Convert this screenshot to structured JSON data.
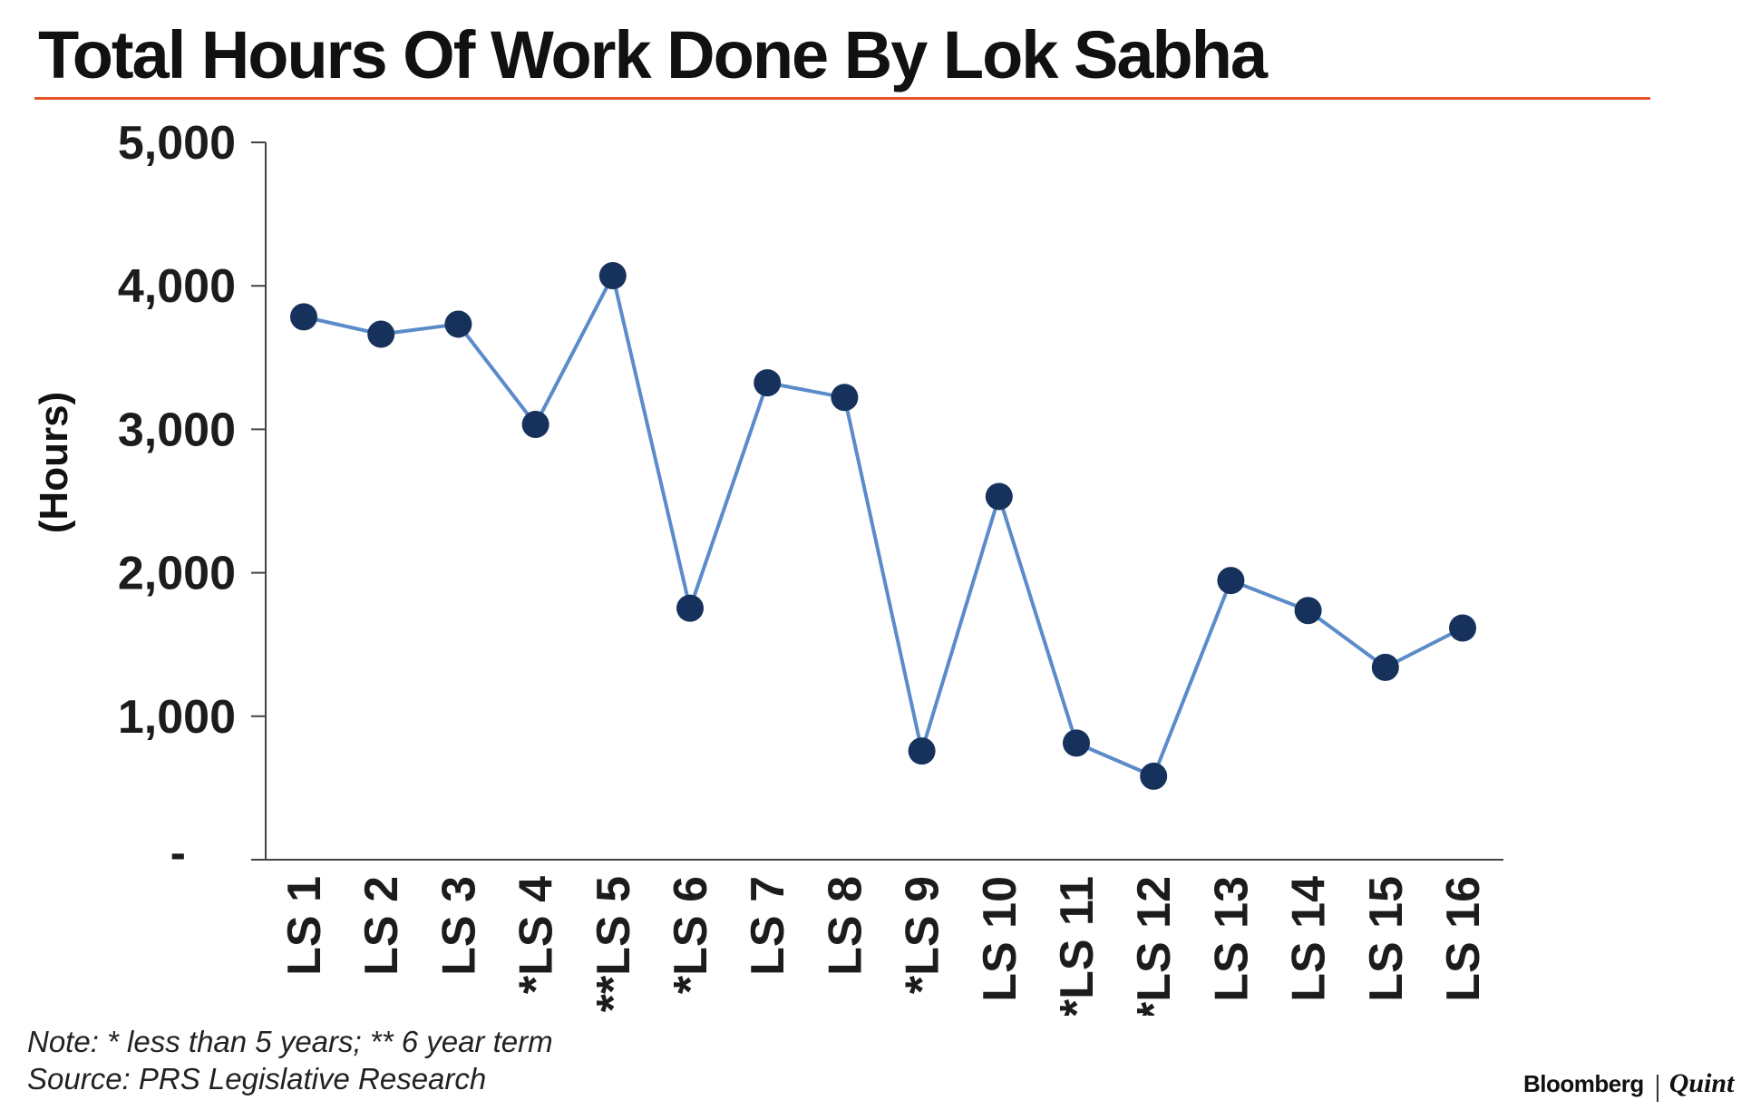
{
  "title": "Total Hours Of Work Done By Lok Sabha",
  "notes": {
    "line1": "Note: * less than 5 years; ** 6 year term",
    "line2": "Source: PRS Legislative Research"
  },
  "brand": {
    "name": "Bloomberg",
    "partner": "Quint"
  },
  "colors": {
    "title_rule": "#e8542a",
    "line": "#5b8bc9",
    "marker": "#16325c",
    "axis": "#444444"
  },
  "chart_data": {
    "type": "line",
    "title": "Total Hours Of Work Done By Lok Sabha",
    "ylabel": "(Hours)",
    "xlabel": "",
    "ylim": [
      0,
      5000
    ],
    "yticks": [
      0,
      1000,
      2000,
      3000,
      4000,
      5000
    ],
    "ytick_labels": [
      "-",
      "1,000",
      "2,000",
      "3,000",
      "4,000",
      "5,000"
    ],
    "categories": [
      "LS 1",
      "LS 2",
      "LS 3",
      "*LS 4",
      "**LS 5",
      "*LS 6",
      "LS 7",
      "LS 8",
      "*LS 9",
      "LS 10",
      "*LS 11",
      "*LS 12",
      "LS 13",
      "LS 14",
      "LS 15",
      "LS 16"
    ],
    "values": [
      3784,
      3663,
      3733,
      3034,
      4071,
      1753,
      3324,
      3222,
      758,
      2532,
      813,
      582,
      1946,
      1737,
      1341,
      1615
    ],
    "grid": false,
    "legend": "none"
  }
}
